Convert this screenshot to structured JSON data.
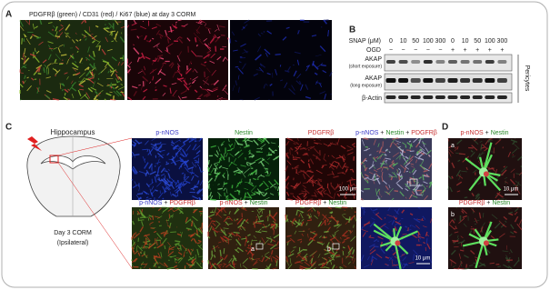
{
  "panel_a": {
    "label": "A",
    "title": "PDGFRβ (green) / CD31 (red) / Ki67 (blue) at day 3 CORM"
  },
  "panel_b": {
    "label": "B",
    "snap_label": "SNAP (μM)",
    "snap_values": [
      0,
      10,
      50,
      100,
      300,
      0,
      10,
      50,
      100,
      300
    ],
    "ogd_label": "OGD",
    "ogd_values": [
      "−",
      "−",
      "−",
      "−",
      "−",
      "+",
      "+",
      "+",
      "+",
      "+"
    ],
    "rows": [
      {
        "name": "AKAP",
        "note": "(short exposure)"
      },
      {
        "name": "AKAP",
        "note": "(long exposure)"
      },
      {
        "name": "β-Actin"
      }
    ],
    "cell_type": "Pericytes"
  },
  "panel_c": {
    "label": "C",
    "region": "Hippocampus",
    "condition": "Day 3 CORM",
    "side": "(Ipsilateral)",
    "images": [
      {
        "caption": [
          {
            "text": "p-nNOS",
            "color": "#3a3ac8"
          }
        ]
      },
      {
        "caption": [
          {
            "text": "Nestin",
            "color": "#2a8a2a"
          }
        ]
      },
      {
        "caption": [
          {
            "text": "PDGFRβ",
            "color": "#c83030"
          }
        ]
      },
      {
        "caption": [
          {
            "text": "p-nNOS",
            "color": "#3a3ac8"
          },
          {
            "text": " + ",
            "color": "#222222"
          },
          {
            "text": "Nestin",
            "color": "#2a8a2a"
          },
          {
            "text": " + ",
            "color": "#222222"
          },
          {
            "text": "PDGFRβ",
            "color": "#c83030"
          }
        ]
      },
      {
        "caption": [
          {
            "text": "p-nNOS",
            "color": "#3a3ac8"
          },
          {
            "text": " + ",
            "color": "#222222"
          },
          {
            "text": "PDGFRβ",
            "color": "#c83030"
          }
        ]
      },
      {
        "caption": [
          {
            "text": "p-nNOS",
            "color": "#c83030"
          },
          {
            "text": " + ",
            "color": "#222222"
          },
          {
            "text": "Nestin",
            "color": "#2a8a2a"
          }
        ]
      },
      {
        "caption": [
          {
            "text": "PDGFRβ",
            "color": "#c83030"
          },
          {
            "text": " + ",
            "color": "#222222"
          },
          {
            "text": "Nestin",
            "color": "#2a8a2a"
          }
        ]
      }
    ],
    "scale_large": "100 μm",
    "scale_small": "10 μm",
    "inset_a": "a",
    "inset_b": "b"
  },
  "panel_d": {
    "label": "D",
    "images": [
      {
        "caption": [
          {
            "text": "p-nNOS",
            "color": "#c83030"
          },
          {
            "text": " + ",
            "color": "#222222"
          },
          {
            "text": "Nestin",
            "color": "#2a8a2a"
          }
        ],
        "tag": "a"
      },
      {
        "caption": [
          {
            "text": "PDGFRβ",
            "color": "#c83030"
          },
          {
            "text": " + ",
            "color": "#222222"
          },
          {
            "text": "Nestin",
            "color": "#2a8a2a"
          }
        ],
        "tag": "b"
      }
    ],
    "scale": "10 μm"
  }
}
